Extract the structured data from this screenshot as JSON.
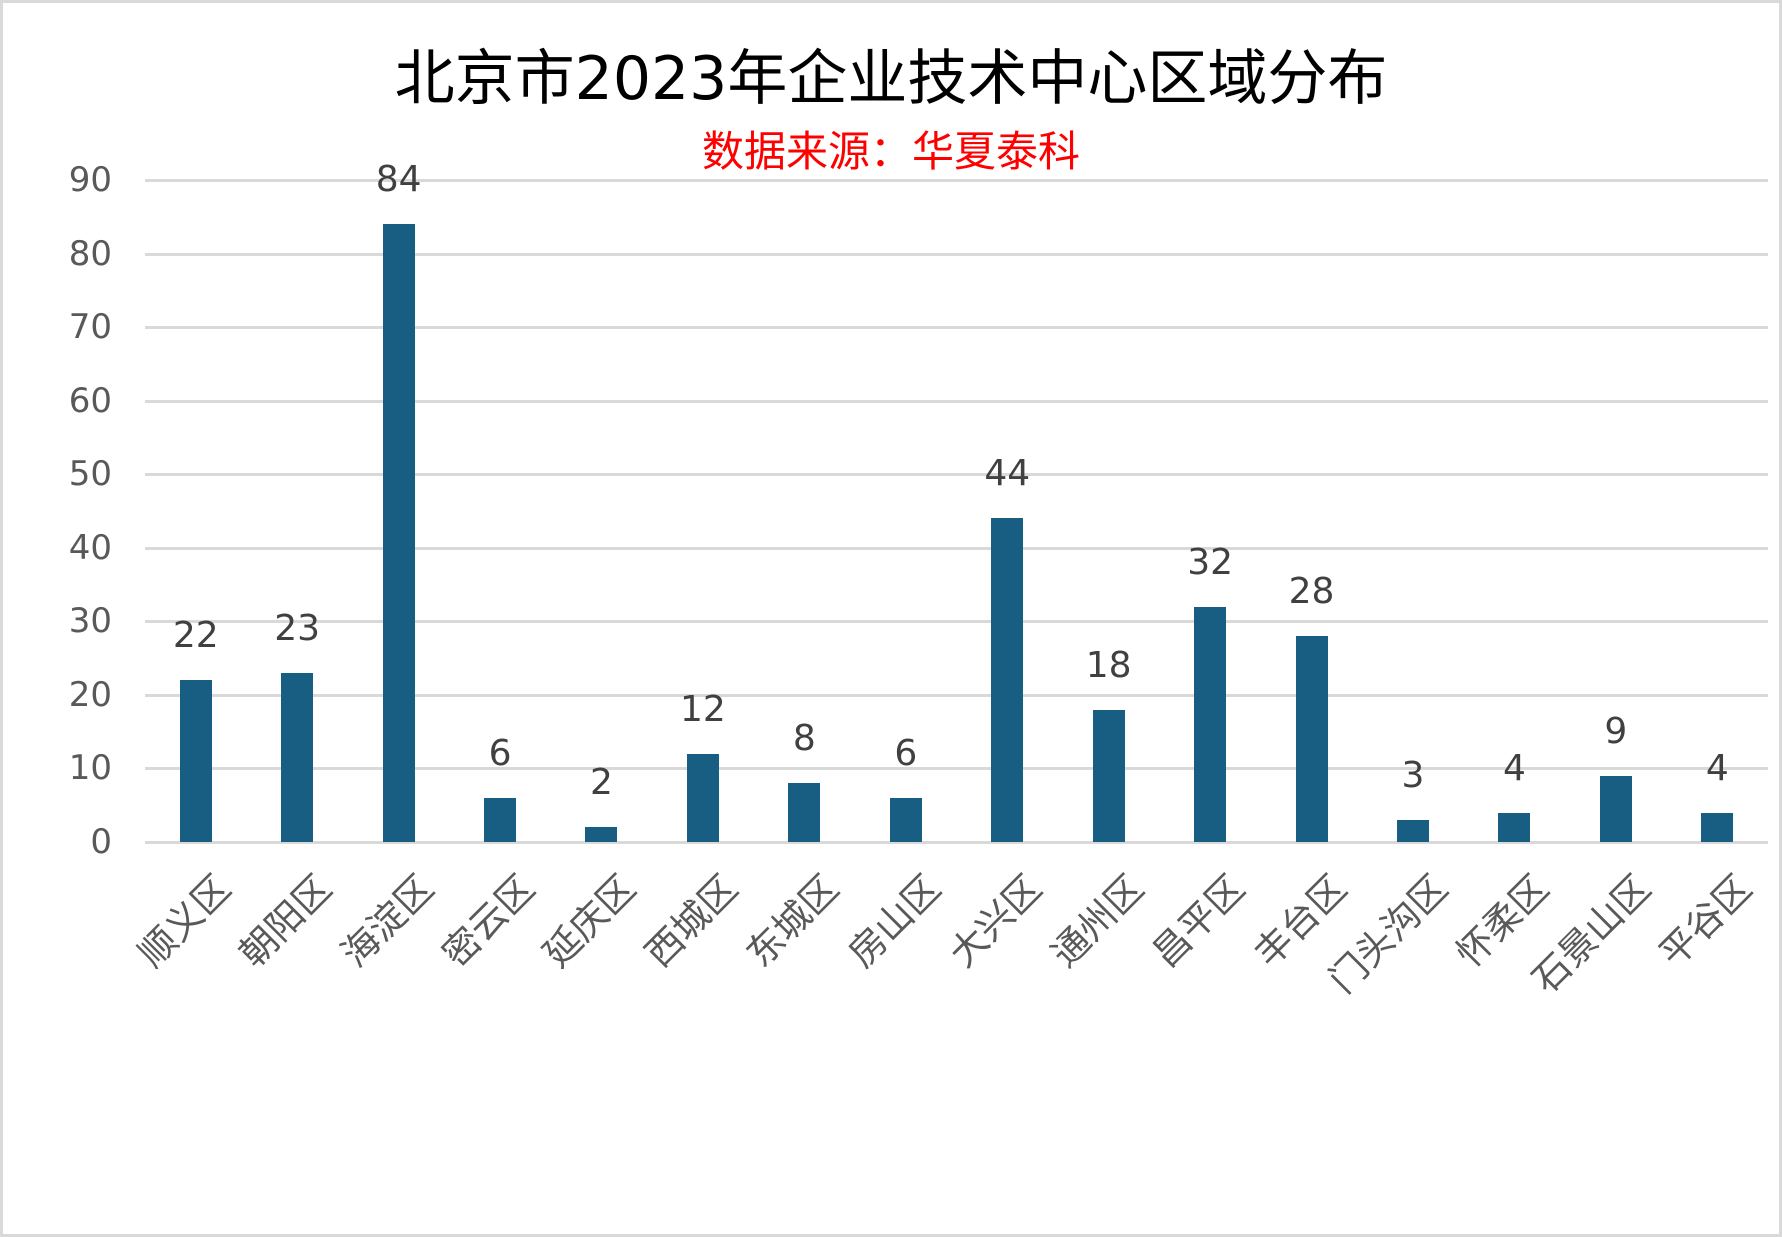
{
  "chart_data": {
    "type": "bar",
    "title": "北京市2023年企业技术中心区域分布",
    "subtitle": "数据来源：华夏泰科",
    "xlabel": "",
    "ylabel": "",
    "ylim": [
      0,
      90
    ],
    "yticks": [
      0,
      10,
      20,
      30,
      40,
      50,
      60,
      70,
      80,
      90
    ],
    "grid": true,
    "legend": null,
    "categories": [
      "顺义区",
      "朝阳区",
      "海淀区",
      "密云区",
      "延庆区",
      "西城区",
      "东城区",
      "房山区",
      "大兴区",
      "通州区",
      "昌平区",
      "丰台区",
      "门头沟区",
      "怀柔区",
      "石景山区",
      "平谷区"
    ],
    "values": [
      22,
      23,
      84,
      6,
      2,
      12,
      8,
      6,
      44,
      18,
      32,
      28,
      3,
      4,
      9,
      4
    ],
    "data_labels": true
  },
  "colors": {
    "bar": "#175E82",
    "subtitle": "#FF0000",
    "gridline": "#D9D9D9",
    "axis_text": "#595959",
    "data_label": "#404040"
  }
}
